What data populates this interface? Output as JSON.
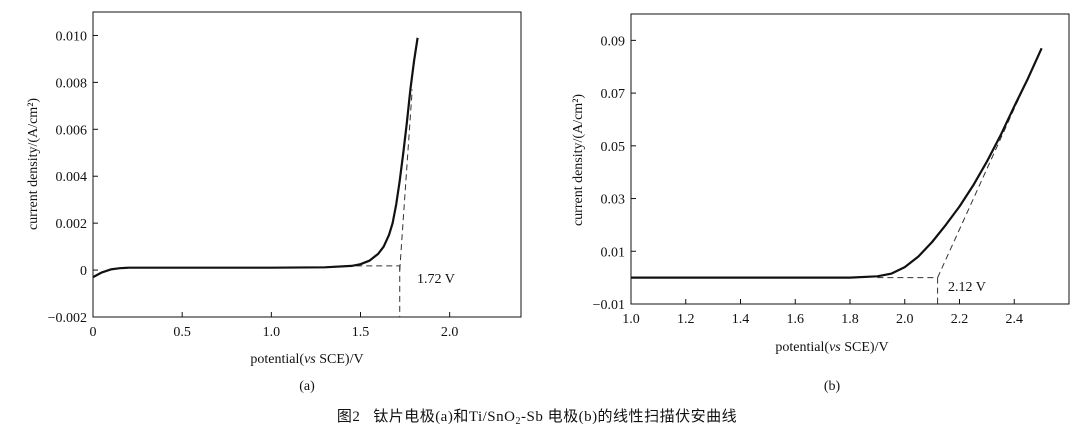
{
  "chart_data": [
    {
      "type": "line",
      "panel_label": "(a)",
      "xlabel_pre": "potential(",
      "xlabel_vs": "vs",
      "xlabel_post": " SCE)/V",
      "ylabel": "current density/(A/cm²)",
      "xlim": [
        0,
        2.4
      ],
      "ylim": [
        -0.002,
        0.011
      ],
      "xticks": [
        0,
        0.5,
        1.0,
        1.5,
        2.0
      ],
      "xtick_labels": [
        "0",
        "0.5",
        "1.0",
        "1.5",
        "2.0"
      ],
      "yticks": [
        -0.002,
        0,
        0.002,
        0.004,
        0.006,
        0.008,
        0.01
      ],
      "ytick_labels": [
        "−0.002",
        "0",
        "0.002",
        "0.004",
        "0.006",
        "0.008",
        "0.010"
      ],
      "series": [
        {
          "name": "LSV curve",
          "x": [
            0,
            0.05,
            0.1,
            0.15,
            0.2,
            0.3,
            0.5,
            1.0,
            1.3,
            1.45,
            1.5,
            1.55,
            1.6,
            1.63,
            1.66,
            1.68,
            1.7,
            1.72,
            1.74,
            1.76,
            1.78,
            1.8,
            1.82
          ],
          "y": [
            -0.0003,
            -0.0001,
            3e-05,
            8e-05,
            0.0001,
            0.0001,
            0.0001,
            0.0001,
            0.00012,
            0.00018,
            0.00025,
            0.0004,
            0.0007,
            0.001,
            0.0015,
            0.002,
            0.0028,
            0.0038,
            0.005,
            0.0063,
            0.0077,
            0.0089,
            0.0099
          ]
        }
      ],
      "tangent": {
        "x": [
          1.72,
          1.79
        ],
        "y": [
          0.0,
          0.0077
        ]
      },
      "baseline_ext": {
        "x": [
          1.42,
          1.72
        ],
        "y": [
          0.00018,
          0.00018
        ]
      },
      "onset_x": 1.72,
      "annotation": "1.72 V"
    },
    {
      "type": "line",
      "panel_label": "(b)",
      "xlabel_pre": "potential(",
      "xlabel_vs": "vs",
      "xlabel_post": " SCE)/V",
      "ylabel": "current density/(A/cm²)",
      "xlim": [
        1.0,
        2.6
      ],
      "ylim": [
        -0.01,
        0.1
      ],
      "xticks": [
        1.0,
        1.2,
        1.4,
        1.6,
        1.8,
        2.0,
        2.2,
        2.4
      ],
      "xtick_labels": [
        "1.0",
        "1.2",
        "1.4",
        "1.6",
        "1.8",
        "2.0",
        "2.2",
        "2.4"
      ],
      "yticks": [
        -0.01,
        0.01,
        0.03,
        0.05,
        0.07,
        0.09
      ],
      "ytick_labels": [
        "−0.01",
        "0.01",
        "0.03",
        "0.05",
        "0.07",
        "0.09"
      ],
      "series": [
        {
          "name": "LSV curve",
          "x": [
            1.0,
            1.4,
            1.8,
            1.9,
            1.95,
            2.0,
            2.05,
            2.1,
            2.15,
            2.2,
            2.25,
            2.3,
            2.35,
            2.4,
            2.45,
            2.5
          ],
          "y": [
            0.0,
            0.0,
            0.0,
            0.0005,
            0.0015,
            0.004,
            0.008,
            0.0135,
            0.02,
            0.027,
            0.035,
            0.044,
            0.054,
            0.065,
            0.0755,
            0.087
          ]
        }
      ],
      "tangent": {
        "x": [
          2.12,
          2.5
        ],
        "y": [
          0.0,
          0.087
        ]
      },
      "baseline_ext": {
        "x": [
          1.9,
          2.12
        ],
        "y": [
          0.0,
          0.0
        ]
      },
      "onset_x": 2.12,
      "annotation": "2.12 V"
    }
  ],
  "caption": {
    "fig": "图2",
    "text_a": "钛片电极(a)和Ti/SnO",
    "sub": "2",
    "text_b": "-Sb 电极(b)的线性扫描伏安曲线"
  }
}
